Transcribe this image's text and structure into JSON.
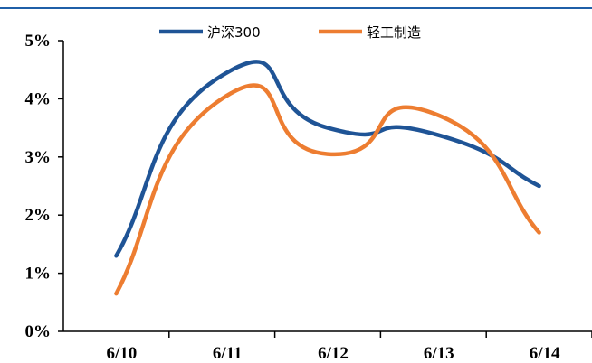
{
  "chart_data": {
    "type": "line",
    "categories": [
      "6/10",
      "6/11",
      "6/12",
      "6/13",
      "6/14"
    ],
    "series": [
      {
        "name": "沪深300",
        "values": [
          1.3,
          4.4,
          3.5,
          3.4,
          2.5
        ],
        "color": "#1f5496"
      },
      {
        "name": "轻工制造",
        "values": [
          0.65,
          4.0,
          3.05,
          3.75,
          1.7
        ],
        "color": "#ed7d31"
      }
    ],
    "y_tick_labels": [
      "0%",
      "1%",
      "2%",
      "3%",
      "4%",
      "5%"
    ],
    "ylim": [
      0,
      5
    ],
    "legend_position": "top-center",
    "grid": false,
    "title": "",
    "xlabel": "",
    "ylabel": ""
  }
}
